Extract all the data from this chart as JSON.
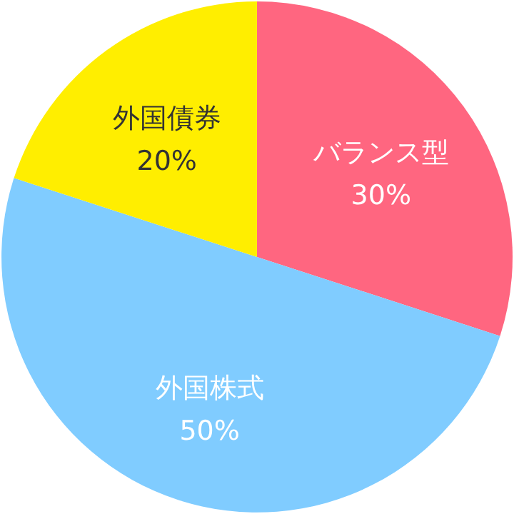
{
  "chart_data": {
    "type": "pie",
    "categories": [
      "バランス型",
      "外国株式",
      "外国債券"
    ],
    "values": [
      30,
      50,
      20
    ],
    "colors": [
      "#ff6680",
      "#80ccff",
      "#ffee00"
    ],
    "value_labels": [
      "30%",
      "50%",
      "20%"
    ],
    "legend": false
  }
}
